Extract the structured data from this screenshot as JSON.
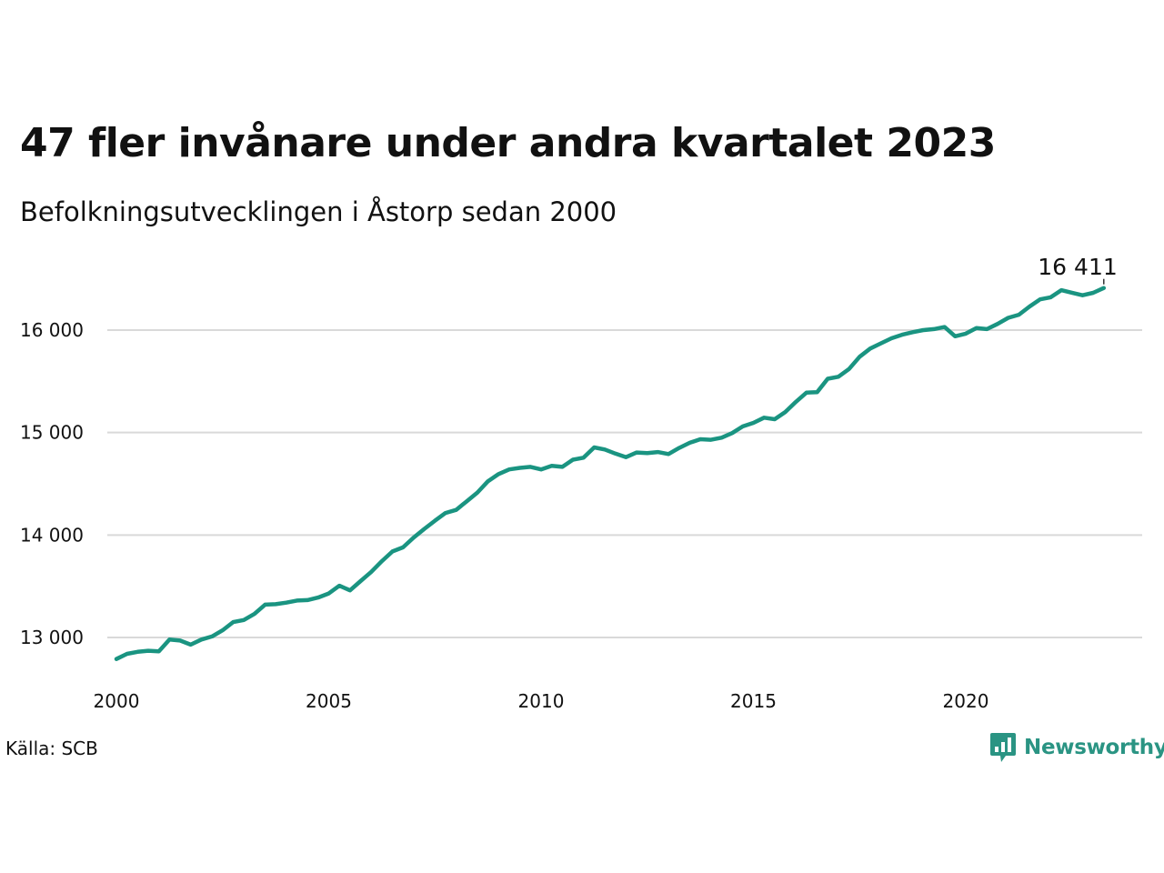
{
  "chart_data": {
    "type": "line",
    "title": "47 fler invånare under andra kvartalet 2023",
    "subtitle": "Befolkningsutvecklingen i Åstorp sedan 2000",
    "xlabel": "",
    "ylabel": "",
    "xlim": [
      2000,
      2024.25
    ],
    "ylim": [
      12600,
      16500
    ],
    "x_ticks": [
      2000,
      2005,
      2010,
      2015,
      2020
    ],
    "x_tick_labels": [
      "2000",
      "2005",
      "2010",
      "2015",
      "2020"
    ],
    "y_ticks": [
      13000,
      14000,
      15000,
      16000
    ],
    "y_tick_labels": [
      "13 000",
      "14 000",
      "15 000",
      "16 000"
    ],
    "grid": "horizontal",
    "end_label": "16 411",
    "line_color": "#1a9481",
    "series": [
      {
        "x": [
          2000.0,
          2000.25,
          2000.5,
          2000.75,
          2001.0,
          2001.25,
          2001.5,
          2001.75,
          2002.0,
          2002.25,
          2002.5,
          2002.75,
          2003.0,
          2003.25,
          2003.5,
          2003.75,
          2004.0,
          2004.25,
          2004.5,
          2004.75,
          2005.0,
          2005.25,
          2005.5,
          2005.75,
          2006.0,
          2006.25,
          2006.5,
          2006.75,
          2007.0,
          2007.25,
          2007.5,
          2007.75,
          2008.0,
          2008.25,
          2008.5,
          2008.75,
          2009.0,
          2009.25,
          2009.5,
          2009.75,
          2010.0,
          2010.25,
          2010.5,
          2010.75,
          2011.0,
          2011.25,
          2011.5,
          2011.75,
          2012.0,
          2012.25,
          2012.5,
          2012.75,
          2013.0,
          2013.25,
          2013.5,
          2013.75,
          2014.0,
          2014.25,
          2014.5,
          2014.75,
          2015.0,
          2015.25,
          2015.5,
          2015.75,
          2016.0,
          2016.25,
          2016.5,
          2016.75,
          2017.0,
          2017.25,
          2017.5,
          2017.75,
          2018.0,
          2018.25,
          2018.5,
          2018.75,
          2019.0,
          2019.25,
          2019.5,
          2019.75,
          2020.0,
          2020.25,
          2020.5,
          2020.75,
          2021.0,
          2021.25,
          2021.5,
          2021.75,
          2022.0,
          2022.25,
          2022.5,
          2022.75,
          2023.0,
          2023.25
        ],
        "values": [
          12790,
          12840,
          12860,
          12870,
          12865,
          12980,
          12970,
          12930,
          12980,
          13010,
          13070,
          13150,
          13170,
          13230,
          13320,
          13325,
          13340,
          13360,
          13365,
          13390,
          13430,
          13505,
          13460,
          13550,
          13640,
          13745,
          13840,
          13880,
          13975,
          14060,
          14140,
          14215,
          14245,
          14330,
          14415,
          14525,
          14595,
          14640,
          14655,
          14665,
          14640,
          14675,
          14665,
          14735,
          14755,
          14855,
          14835,
          14795,
          14760,
          14805,
          14800,
          14810,
          14790,
          14850,
          14900,
          14935,
          14930,
          14950,
          14995,
          15060,
          15095,
          15145,
          15130,
          15200,
          15300,
          15390,
          15395,
          15525,
          15545,
          15620,
          15740,
          15820,
          15870,
          15920,
          15955,
          15980,
          16000,
          16010,
          16030,
          15940,
          15965,
          16020,
          16010,
          16060,
          16120,
          16150,
          16230,
          16300,
          16320,
          16390,
          16365,
          16340,
          16364,
          16411
        ]
      }
    ]
  },
  "source": "Källa: SCB",
  "logo": {
    "name": "Newsworthy",
    "icon": "newsworthy-chart-icon",
    "color": "#2a9483"
  }
}
